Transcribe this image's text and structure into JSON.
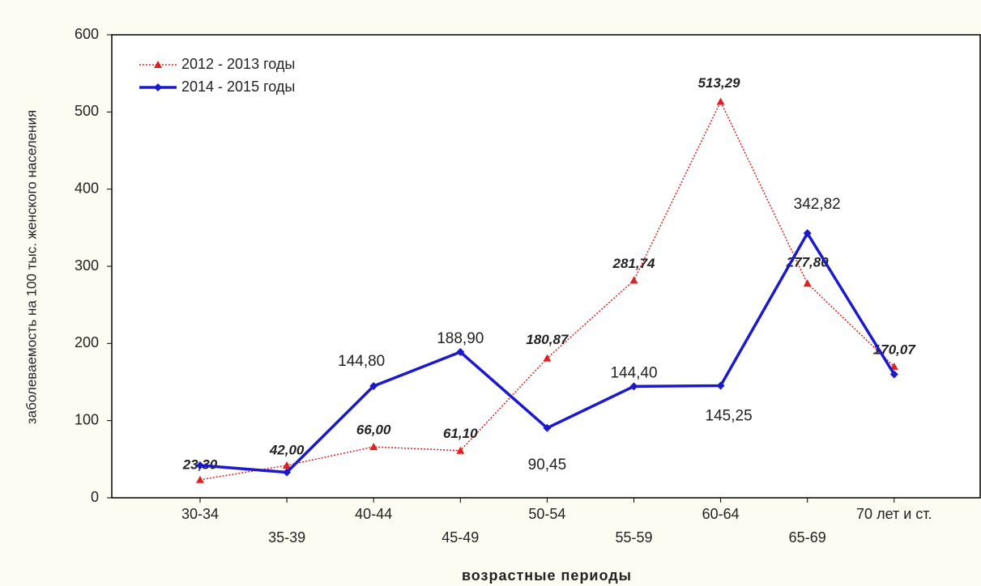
{
  "chart_data": {
    "type": "line",
    "x_label": "возрастные периоды",
    "y_label": "заболеваемость на 100 тыс. женского населения",
    "categories": [
      "30-34",
      "35-39",
      "40-44",
      "45-49",
      "50-54",
      "55-59",
      "60-64",
      "65-69",
      "70 лет и ст."
    ],
    "series": [
      {
        "name": "2012 - 2013 годы",
        "color": "#e02020",
        "style": "dotted",
        "marker": "triangle",
        "values": [
          23.3,
          42.0,
          66.0,
          61.1,
          180.87,
          281.74,
          513.29,
          277.8,
          170.07
        ],
        "value_labels": [
          "23,30",
          "42,00",
          "66,00",
          "61,10",
          "180,87",
          "281,74",
          "513,29",
          "277,80",
          "170,07"
        ]
      },
      {
        "name": "2014 - 2015 годы",
        "color": "#1a1acc",
        "style": "solid",
        "marker": "diamond",
        "values": [
          42,
          33,
          144.8,
          188.9,
          90.45,
          144.4,
          145.25,
          342.82,
          160
        ],
        "value_labels": [
          null,
          null,
          "144,80",
          "188,90",
          "90,45",
          "144,40",
          "145,25",
          "342,82",
          null
        ]
      }
    ],
    "ylim": [
      0,
      600
    ],
    "yticks": [
      0,
      100,
      200,
      300,
      400,
      500,
      600
    ],
    "legend": "upper left",
    "grid": false
  }
}
